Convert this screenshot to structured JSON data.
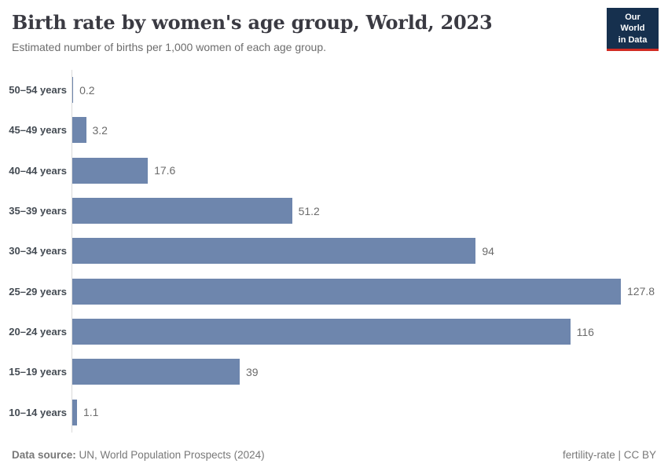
{
  "header": {
    "title": "Birth rate by women's age group, World, 2023",
    "subtitle": "Estimated number of births per 1,000 women of each age group.",
    "logo": {
      "line1": "Our World",
      "line2": "in Data"
    }
  },
  "colors": {
    "bar": "#6e86ad",
    "axis": "#dadada",
    "logo_bg": "#16304e",
    "logo_accent": "#d12b23"
  },
  "chart_data": {
    "type": "bar",
    "orientation": "horizontal",
    "title": "Birth rate by women's age group, World, 2023",
    "subtitle": "Estimated number of births per 1,000 women of each age group.",
    "categories": [
      "50–54 years",
      "45–49 years",
      "40–44 years",
      "35–39 years",
      "30–34 years",
      "25–29 years",
      "20–24 years",
      "15–19 years",
      "10–14 years"
    ],
    "values": [
      0.2,
      3.2,
      17.6,
      51.2,
      94,
      127.8,
      116,
      39,
      1.1
    ],
    "value_labels": [
      "0.2",
      "3.2",
      "17.6",
      "51.2",
      "94",
      "127.8",
      "116",
      "39",
      "1.1"
    ],
    "xlabel": "",
    "ylabel": "",
    "xlim": [
      0,
      127.8
    ],
    "grid": false,
    "legend": false
  },
  "footer": {
    "datasource_label": "Data source:",
    "datasource_value": "UN, World Population Prospects (2024)",
    "note_right": "fertility-rate | CC BY"
  }
}
